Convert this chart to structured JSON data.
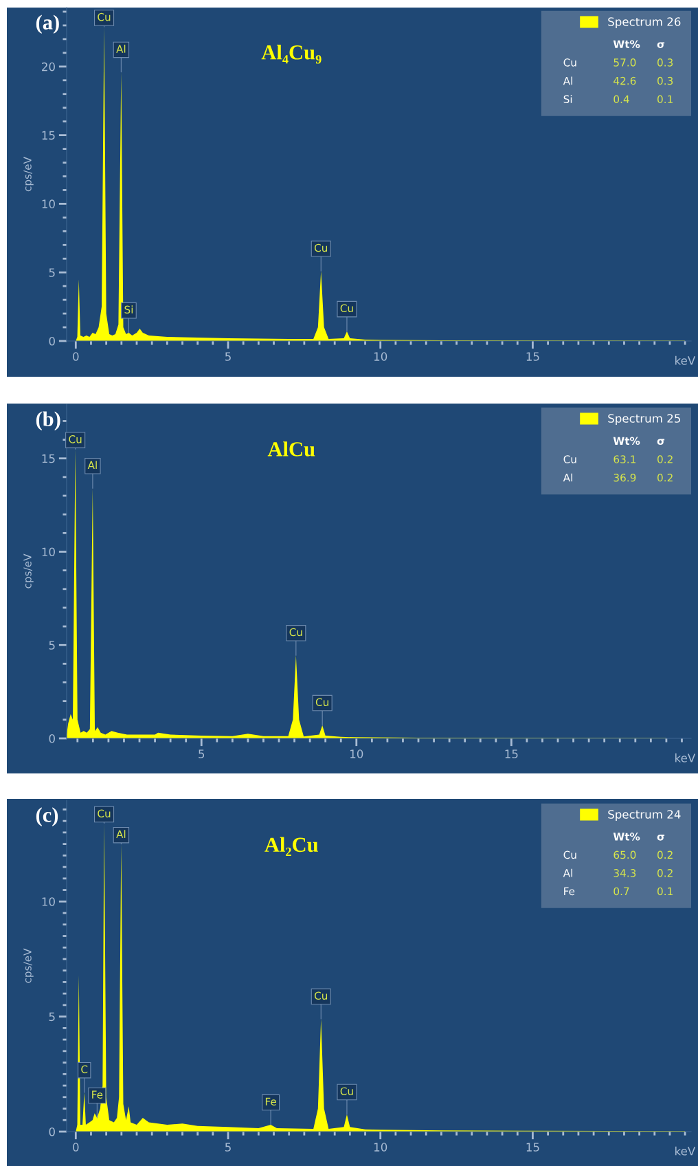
{
  "chart_data": [
    {
      "type": "area",
      "ylabel": "cps/eV",
      "xlabel": "keV",
      "xlim": [
        -0.3,
        20.2
      ],
      "ylim": [
        0,
        24.3
      ],
      "xticks": [
        0,
        5,
        10,
        15
      ],
      "yticks": [
        0,
        5,
        10,
        15,
        20
      ],
      "legend": "top right",
      "grid": false,
      "series": [
        {
          "name": "Spectrum 26",
          "color": "#ffff00",
          "x": [
            0.0,
            0.05,
            0.1,
            0.15,
            0.25,
            0.35,
            0.45,
            0.55,
            0.65,
            0.75,
            0.85,
            0.93,
            1.0,
            1.1,
            1.2,
            1.3,
            1.4,
            1.49,
            1.56,
            1.65,
            1.74,
            1.85,
            2.0,
            2.1,
            2.2,
            2.4,
            3.0,
            4.0,
            5.0,
            6.0,
            7.0,
            7.8,
            7.95,
            8.05,
            8.15,
            8.3,
            8.8,
            8.9,
            9.0,
            9.5,
            10,
            12,
            15,
            20
          ],
          "values": [
            0,
            0.3,
            4.5,
            0.4,
            0.3,
            0.4,
            0.3,
            0.6,
            0.5,
            1.0,
            2.5,
            22.9,
            2.0,
            0.5,
            0.4,
            0.5,
            1.2,
            19.6,
            1.0,
            0.5,
            0.6,
            0.4,
            0.6,
            0.9,
            0.6,
            0.4,
            0.3,
            0.25,
            0.2,
            0.18,
            0.15,
            0.15,
            1.0,
            5.1,
            1.0,
            0.15,
            0.2,
            0.7,
            0.2,
            0.1,
            0.08,
            0.05,
            0.04,
            0.02
          ]
        }
      ],
      "annotations": [
        "(a)",
        "Al₄Cu₉",
        "Wt%",
        "σ",
        "Cu",
        "57.0",
        "0.3",
        "Al",
        "42.6",
        "0.3",
        "Si",
        "0.4",
        "0.1",
        {
          "text": "Cu",
          "x": 0.93,
          "y": 22.9
        },
        {
          "text": "Al",
          "x": 1.49,
          "y": 19.6
        },
        {
          "text": "Si",
          "x": 1.74,
          "y": 0.6
        },
        {
          "text": "Cu",
          "x": 8.05,
          "y": 5.1
        },
        {
          "text": "Cu",
          "x": 8.9,
          "y": 0.7
        }
      ]
    },
    {
      "type": "area",
      "ylabel": "cps/eV",
      "xlabel": "keV",
      "xlim": [
        0.65,
        20.8
      ],
      "ylim": [
        0,
        17.9
      ],
      "xticks": [
        5,
        10,
        15
      ],
      "yticks": [
        0,
        5,
        10,
        15
      ],
      "legend": "top right",
      "grid": false,
      "series": [
        {
          "name": "Spectrum 25",
          "color": "#ffff00",
          "x": [
            0.65,
            0.7,
            0.78,
            0.85,
            0.93,
            1.0,
            1.1,
            1.2,
            1.3,
            1.4,
            1.49,
            1.56,
            1.65,
            1.75,
            1.9,
            2.1,
            2.3,
            2.6,
            3.0,
            3.5,
            3.6,
            4.0,
            5,
            6,
            6.5,
            7.0,
            7.8,
            7.95,
            8.05,
            8.15,
            8.3,
            8.8,
            8.9,
            9.0,
            9.5,
            10,
            12,
            15,
            20
          ],
          "values": [
            0.2,
            0.8,
            1.3,
            1.0,
            15.5,
            1.0,
            0.3,
            0.4,
            0.3,
            0.5,
            13.4,
            0.4,
            0.6,
            0.3,
            0.2,
            0.4,
            0.3,
            0.2,
            0.2,
            0.2,
            0.3,
            0.2,
            0.15,
            0.12,
            0.25,
            0.12,
            0.12,
            1.0,
            4.45,
            1.0,
            0.1,
            0.2,
            0.7,
            0.15,
            0.08,
            0.06,
            0.04,
            0.03,
            0.02
          ]
        }
      ],
      "annotations": [
        "(b)",
        "AlCu",
        "Wt%",
        "σ",
        "Cu",
        "63.1",
        "0.2",
        "Al",
        "36.9",
        "0.2",
        {
          "text": "Cu",
          "x": 0.93,
          "y": 15.5
        },
        {
          "text": "Al",
          "x": 1.49,
          "y": 13.4
        },
        {
          "text": "Cu",
          "x": 8.05,
          "y": 4.45
        },
        {
          "text": "Cu",
          "x": 8.9,
          "y": 0.7
        }
      ]
    },
    {
      "type": "area",
      "ylabel": "cps/eV",
      "xlabel": "keV",
      "xlim": [
        -0.3,
        20.2
      ],
      "ylim": [
        0,
        14.4
      ],
      "xticks": [
        0,
        5,
        10,
        15
      ],
      "yticks": [
        0,
        5,
        10
      ],
      "legend": "top right",
      "grid": false,
      "series": [
        {
          "name": "Spectrum 24",
          "color": "#ffff00",
          "x": [
            0.0,
            0.05,
            0.1,
            0.15,
            0.22,
            0.28,
            0.33,
            0.45,
            0.55,
            0.62,
            0.7,
            0.8,
            0.88,
            0.93,
            1.0,
            1.1,
            1.25,
            1.35,
            1.42,
            1.49,
            1.56,
            1.65,
            1.74,
            1.8,
            2.0,
            2.2,
            2.4,
            3.0,
            3.5,
            4.0,
            5.0,
            6.0,
            6.4,
            6.6,
            7.8,
            7.95,
            8.05,
            8.15,
            8.3,
            8.8,
            8.9,
            9.0,
            9.5,
            10,
            12,
            15,
            20
          ],
          "values": [
            0,
            0.3,
            6.8,
            0.3,
            0.3,
            1.7,
            0.3,
            0.4,
            0.5,
            0.8,
            0.6,
            1.0,
            2.0,
            13.4,
            1.5,
            0.5,
            0.4,
            0.6,
            1.5,
            12.5,
            1.2,
            0.5,
            1.1,
            0.4,
            0.3,
            0.6,
            0.4,
            0.3,
            0.35,
            0.25,
            0.2,
            0.15,
            0.3,
            0.15,
            0.12,
            1.0,
            4.9,
            1.0,
            0.12,
            0.2,
            0.75,
            0.2,
            0.1,
            0.08,
            0.05,
            0.04,
            0.02
          ]
        }
      ],
      "annotations": [
        "(c)",
        "Al₂Cu",
        "Wt%",
        "σ",
        "Cu",
        "65.0",
        "0.2",
        "Al",
        "34.3",
        "0.2",
        "Fe",
        "0.7",
        "0.1",
        {
          "text": "C",
          "x": 0.28,
          "y": 1.7
        },
        {
          "text": "Fe",
          "x": 0.7,
          "y": 0.6
        },
        {
          "text": "Cu",
          "x": 0.93,
          "y": 13.4
        },
        {
          "text": "Al",
          "x": 1.49,
          "y": 12.5
        },
        {
          "text": "Fe",
          "x": 6.4,
          "y": 0.3
        },
        {
          "text": "Cu",
          "x": 8.05,
          "y": 4.9
        },
        {
          "text": "Cu",
          "x": 8.9,
          "y": 0.75
        }
      ]
    }
  ]
}
